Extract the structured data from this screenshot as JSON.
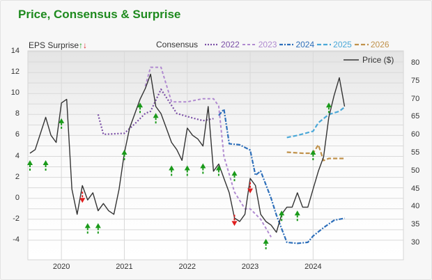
{
  "title": "Price, Consensus & Surprise",
  "eps_surprise_label": "EPS Surprise",
  "eps_up_glyph": "↑",
  "eps_down_glyph": "↓",
  "legend": {
    "consensus_label": "Consensus",
    "items": [
      {
        "label": "2022",
        "color": "#7b4fa6",
        "style": "dotted"
      },
      {
        "label": "2023",
        "color": "#b08ad0",
        "style": "dashed"
      },
      {
        "label": "2024",
        "color": "#2e6fba",
        "style": "dashdot"
      },
      {
        "label": "2025",
        "color": "#4aa8d8",
        "style": "dashed"
      },
      {
        "label": "2026",
        "color": "#c0914a",
        "style": "dashed"
      }
    ],
    "price_label": "Price ($)"
  },
  "colors": {
    "title": "#1e8a1e",
    "price": "#333333",
    "surprise_up": "#1a9a1a",
    "surprise_down": "#e01e1e",
    "grid": "#d9d9d9"
  },
  "axes": {
    "left_ticks": [
      "14",
      "12",
      "10",
      "8",
      "6",
      "4",
      "2",
      "0",
      "-2",
      "-4"
    ],
    "right_ticks": [
      "80",
      "75",
      "70",
      "65",
      "60",
      "55",
      "50",
      "45",
      "40",
      "35",
      "30"
    ],
    "x_ticks": [
      "2020",
      "2021",
      "2022",
      "2023",
      "2024"
    ]
  },
  "chart_data": {
    "type": "line",
    "title": "Price, Consensus & Surprise",
    "xlabel": "",
    "ylabel_left": "EPS Surprise / Consensus",
    "ylabel_right": "Price ($)",
    "ylim_left": [
      -5,
      14
    ],
    "ylim_right": [
      28,
      82
    ],
    "x_range": [
      "2019-07",
      "2024-07"
    ],
    "grid": true,
    "legend_position": "top",
    "series": [
      {
        "name": "Price ($)",
        "axis": "right",
        "x": [
          "2019-07",
          "2019-08",
          "2019-10",
          "2019-11",
          "2019-12",
          "2020-01",
          "2020-02",
          "2020-03",
          "2020-04",
          "2020-05",
          "2020-06",
          "2020-07",
          "2020-08",
          "2020-09",
          "2020-10",
          "2020-11",
          "2020-12",
          "2021-01",
          "2021-02",
          "2021-03",
          "2021-04",
          "2021-05",
          "2021-06",
          "2021-07",
          "2021-08",
          "2021-09",
          "2021-10",
          "2021-11",
          "2021-12",
          "2022-01",
          "2022-02",
          "2022-03",
          "2022-04",
          "2022-05",
          "2022-06",
          "2022-07",
          "2022-08",
          "2022-09",
          "2022-10",
          "2022-11",
          "2022-12",
          "2023-01",
          "2023-02",
          "2023-03",
          "2023-04",
          "2023-05",
          "2023-06",
          "2023-07",
          "2023-08",
          "2023-09",
          "2023-10",
          "2023-11",
          "2023-12",
          "2024-01",
          "2024-02",
          "2024-03",
          "2024-04",
          "2024-05",
          "2024-06",
          "2024-07"
        ],
        "values": [
          55,
          56,
          65,
          60,
          58,
          69,
          70,
          45,
          38,
          46,
          42,
          44,
          39,
          41,
          39,
          38,
          45,
          55,
          62,
          66,
          70,
          73,
          77,
          68,
          66,
          62,
          58,
          56,
          53,
          62,
          60,
          59,
          57,
          68,
          50,
          52,
          48,
          44,
          37,
          36,
          38,
          48,
          46,
          38,
          36,
          35,
          33,
          38,
          40,
          40,
          44,
          40,
          40,
          45,
          50,
          54,
          65,
          71,
          76,
          68
        ]
      },
      {
        "name": "Consensus 2022",
        "axis": "left",
        "style": "dotted",
        "x": [
          "2020-08",
          "2020-09",
          "2021-01",
          "2021-03",
          "2021-05",
          "2021-06",
          "2021-08",
          "2021-11",
          "2022-01",
          "2022-04",
          "2022-06"
        ],
        "values": [
          8.0,
          6.1,
          6.2,
          7.1,
          8.1,
          8.3,
          10.4,
          8.1,
          7.8,
          7.4,
          7.6
        ]
      },
      {
        "name": "Consensus 2023",
        "axis": "left",
        "style": "dashed",
        "x": [
          "2021-05",
          "2021-06",
          "2021-08",
          "2021-10",
          "2022-01",
          "2022-04",
          "2022-06",
          "2022-07",
          "2022-08",
          "2022-10",
          "2022-12",
          "2023-01",
          "2023-03",
          "2023-05"
        ],
        "values": [
          10.7,
          12.5,
          12.5,
          9.2,
          9.2,
          9.5,
          9.5,
          8.8,
          4.0,
          0.6,
          -1.0,
          -1.0,
          -2.0,
          -3.7
        ]
      },
      {
        "name": "Consensus 2024",
        "axis": "left",
        "style": "dashdot",
        "x": [
          "2022-07",
          "2022-08",
          "2022-09",
          "2022-11",
          "2023-01",
          "2023-02",
          "2023-03",
          "2023-05",
          "2023-06",
          "2023-08",
          "2023-10",
          "2023-12",
          "2024-01",
          "2024-03",
          "2024-05",
          "2024-07"
        ],
        "values": [
          7.9,
          8.5,
          5.2,
          5.1,
          4.6,
          2.2,
          2.6,
          0.0,
          -1.6,
          -4.2,
          -4.3,
          -4.2,
          -3.6,
          -2.8,
          -2.1,
          -1.9
        ]
      },
      {
        "name": "Consensus 2025",
        "axis": "left",
        "style": "dashed",
        "x": [
          "2023-08",
          "2023-10",
          "2024-01",
          "2024-02",
          "2024-04",
          "2024-06",
          "2024-07"
        ],
        "values": [
          5.8,
          6.0,
          6.4,
          7.2,
          8.0,
          8.3,
          8.7
        ]
      },
      {
        "name": "Consensus 2026",
        "axis": "left",
        "style": "dashed",
        "x": [
          "2023-08",
          "2023-11",
          "2024-01",
          "2024-02",
          "2024-03",
          "2024-04",
          "2024-07"
        ],
        "values": [
          4.4,
          4.3,
          4.3,
          5.1,
          3.6,
          3.8,
          3.8
        ]
      },
      {
        "name": "EPS Surprise Up",
        "axis": "left",
        "type": "arrows",
        "x": [
          "2019-07",
          "2019-10",
          "2020-01",
          "2020-06",
          "2020-08",
          "2021-01",
          "2021-04",
          "2021-07",
          "2021-10",
          "2022-01",
          "2022-04",
          "2022-07",
          "2022-10",
          "2023-04",
          "2023-07",
          "2023-10",
          "2024-01",
          "2024-04"
        ],
        "values": [
          3.5,
          3.5,
          7.5,
          -2.5,
          -2.5,
          4.5,
          9.0,
          8.0,
          3.0,
          3.0,
          3.2,
          3.0,
          2.5,
          -4.0,
          -1.3,
          -1.3,
          4.5,
          9.0
        ]
      },
      {
        "name": "EPS Surprise Down",
        "axis": "left",
        "type": "arrows",
        "x": [
          "2020-05",
          "2022-10",
          "2023-01"
        ],
        "values": [
          -0.3,
          -2.5,
          0.6
        ]
      }
    ]
  }
}
